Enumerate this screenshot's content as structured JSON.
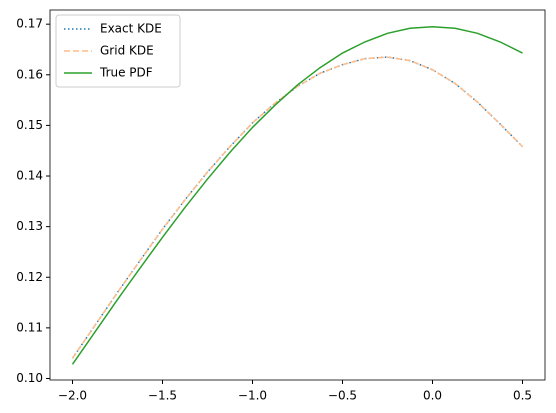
{
  "chart_data": {
    "type": "line",
    "x": [
      -2,
      -1.875,
      -1.75,
      -1.625,
      -1.5,
      -1.375,
      -1.25,
      -1.125,
      -1,
      -0.875,
      -0.75,
      -0.625,
      -0.5,
      -0.375,
      -0.25,
      -0.125,
      0,
      0.125,
      0.25,
      0.375,
      0.5
    ],
    "series": [
      {
        "name": "Exact KDE",
        "color": "#1f77b4",
        "dash": "dotted",
        "values": [
          0.104,
          0.1105,
          0.117,
          0.1233,
          0.1295,
          0.1353,
          0.1408,
          0.1458,
          0.1505,
          0.1544,
          0.1577,
          0.1603,
          0.162,
          0.1632,
          0.1635,
          0.1628,
          0.161,
          0.1583,
          0.1546,
          0.1503,
          0.1458
        ]
      },
      {
        "name": "Grid KDE",
        "color": "#ffbb88",
        "dash": "dashed",
        "values": [
          0.104,
          0.1105,
          0.117,
          0.1233,
          0.1295,
          0.1353,
          0.1408,
          0.1458,
          0.1505,
          0.1544,
          0.1577,
          0.1603,
          0.162,
          0.1632,
          0.1635,
          0.1628,
          0.161,
          0.1583,
          0.1546,
          0.1503,
          0.1458
        ]
      },
      {
        "name": "True PDF",
        "color": "#2ca02c",
        "dash": "solid",
        "values": [
          0.1028,
          0.1092,
          0.1156,
          0.1218,
          0.1279,
          0.1338,
          0.1394,
          0.1447,
          0.1496,
          0.154,
          0.158,
          0.1614,
          0.1643,
          0.1665,
          0.1682,
          0.1692,
          0.1695,
          0.1692,
          0.1682,
          0.1665,
          0.1643
        ]
      }
    ],
    "xlim": [
      -2.125,
      0.625
    ],
    "xticks": [
      {
        "value": -2,
        "label": "−2.0"
      },
      {
        "value": -1.5,
        "label": "−1.5"
      },
      {
        "value": -1,
        "label": "−1.0"
      },
      {
        "value": -0.5,
        "label": "−0.5"
      },
      {
        "value": 0,
        "label": "0.0"
      },
      0.5
    ],
    "ylim": [
      0.0997,
      0.1728
    ],
    "yticks": [
      {
        "value": 0.1,
        "label": "0.10"
      },
      0.11,
      0.12,
      0.13,
      0.14,
      0.15,
      0.16,
      0.17
    ],
    "grid": false,
    "legend": "upper left"
  }
}
